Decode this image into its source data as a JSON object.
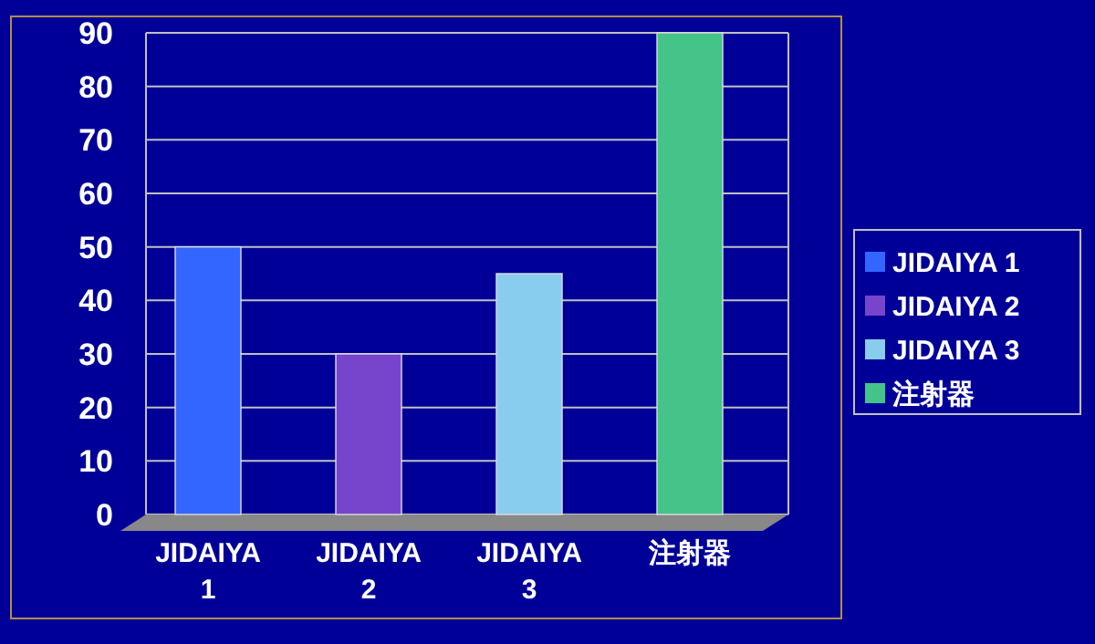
{
  "chart_data": {
    "type": "bar",
    "categories": [
      "JIDAIYA 1",
      "JIDAIYA 2",
      "JIDAIYA 3",
      "注射器"
    ],
    "series": [
      {
        "name": "JIDAIYA 1",
        "color": "#3366ff",
        "values": [
          50,
          null,
          null,
          null
        ]
      },
      {
        "name": "JIDAIYA 2",
        "color": "#7744cc",
        "values": [
          null,
          30,
          null,
          null
        ]
      },
      {
        "name": "JIDAIYA 3",
        "color": "#88ccee",
        "values": [
          null,
          null,
          45,
          null
        ]
      },
      {
        "name": "注射器",
        "color": "#44c488",
        "values": [
          null,
          null,
          null,
          90
        ]
      }
    ],
    "ylim": [
      0,
      90
    ],
    "yticks": [
      0,
      10,
      20,
      30,
      40,
      50,
      60,
      70,
      80,
      90
    ],
    "grid": "y",
    "legend": "right"
  }
}
